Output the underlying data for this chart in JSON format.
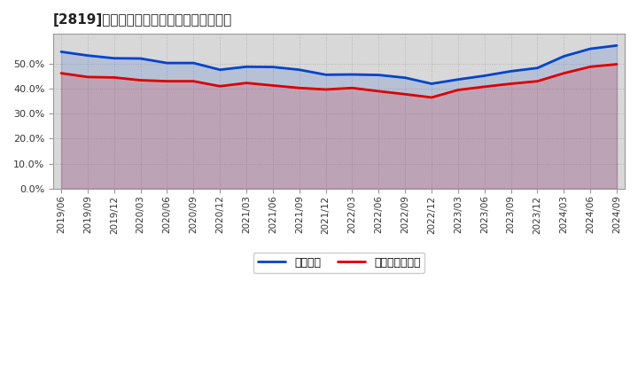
{
  "title": "[2819]　固定比率、固定長期適合率の推移",
  "legend_labels": [
    "固定比率",
    "固定長期適合率"
  ],
  "line_colors": [
    "#0044cc",
    "#dd0000"
  ],
  "background_color": "#ffffff",
  "plot_bg_color": "#d8d8d8",
  "ylim": [
    0.0,
    0.62
  ],
  "yticks": [
    0.0,
    0.1,
    0.2,
    0.3,
    0.4,
    0.5
  ],
  "x_labels": [
    "2019/06",
    "2019/09",
    "2019/12",
    "2020/03",
    "2020/06",
    "2020/09",
    "2020/12",
    "2021/03",
    "2021/06",
    "2021/09",
    "2021/12",
    "2022/03",
    "2022/06",
    "2022/09",
    "2022/12",
    "2023/03",
    "2023/06",
    "2023/09",
    "2023/12",
    "2024/03",
    "2024/06",
    "2024/09"
  ],
  "fixed_ratio": [
    0.548,
    0.533,
    0.522,
    0.521,
    0.503,
    0.503,
    0.476,
    0.488,
    0.487,
    0.476,
    0.456,
    0.457,
    0.455,
    0.444,
    0.42,
    0.437,
    0.452,
    0.47,
    0.483,
    0.53,
    0.56,
    0.573
  ],
  "fixed_long_ratio": [
    0.462,
    0.447,
    0.445,
    0.434,
    0.43,
    0.43,
    0.41,
    0.423,
    0.413,
    0.403,
    0.397,
    0.403,
    0.39,
    0.378,
    0.365,
    0.395,
    0.408,
    0.42,
    0.43,
    0.462,
    0.488,
    0.498
  ]
}
